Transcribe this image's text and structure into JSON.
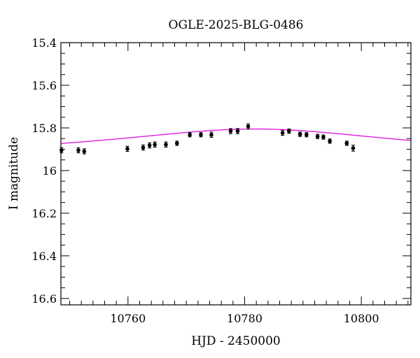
{
  "chart_data": {
    "type": "scatter",
    "title": "OGLE-2025-BLG-0486",
    "xlabel": "HJD - 2450000",
    "ylabel": "I magnitude",
    "xlim": [
      10748.5,
      10808.5
    ],
    "ylim": [
      15.4,
      16.63
    ],
    "y_inverted": true,
    "x_ticks": [
      10760,
      10780,
      10800
    ],
    "x_tick_labels": [
      "10760",
      "10780",
      "10800"
    ],
    "y_ticks": [
      15.4,
      15.6,
      15.8,
      16.0,
      16.2,
      16.4,
      16.6
    ],
    "y_tick_labels": [
      "15.4",
      "15.6",
      "15.8",
      "16",
      "16.2",
      "16.4",
      "16.6"
    ],
    "x_minor_step": 2,
    "y_minor_step": 0.05,
    "grid": false,
    "point_color": "#000000",
    "model_color": "#e020e0",
    "series": [
      {
        "marker": "dot-errorbar",
        "points": [
          {
            "x": 10748.6,
            "y": 15.905,
            "err": 0.012
          },
          {
            "x": 10751.5,
            "y": 15.905,
            "err": 0.012
          },
          {
            "x": 10752.5,
            "y": 15.91,
            "err": 0.012
          },
          {
            "x": 10759.9,
            "y": 15.898,
            "err": 0.012
          },
          {
            "x": 10762.6,
            "y": 15.892,
            "err": 0.012
          },
          {
            "x": 10763.7,
            "y": 15.882,
            "err": 0.012
          },
          {
            "x": 10764.6,
            "y": 15.878,
            "err": 0.012
          },
          {
            "x": 10766.5,
            "y": 15.878,
            "err": 0.012
          },
          {
            "x": 10768.4,
            "y": 15.872,
            "err": 0.01
          },
          {
            "x": 10770.6,
            "y": 15.832,
            "err": 0.01
          },
          {
            "x": 10772.5,
            "y": 15.832,
            "err": 0.01
          },
          {
            "x": 10774.3,
            "y": 15.832,
            "err": 0.012
          },
          {
            "x": 10777.6,
            "y": 15.815,
            "err": 0.012
          },
          {
            "x": 10778.8,
            "y": 15.815,
            "err": 0.012
          },
          {
            "x": 10780.6,
            "y": 15.793,
            "err": 0.012
          },
          {
            "x": 10786.5,
            "y": 15.823,
            "err": 0.012
          },
          {
            "x": 10787.6,
            "y": 15.815,
            "err": 0.01
          },
          {
            "x": 10789.5,
            "y": 15.83,
            "err": 0.01
          },
          {
            "x": 10790.6,
            "y": 15.832,
            "err": 0.01
          },
          {
            "x": 10792.5,
            "y": 15.84,
            "err": 0.01
          },
          {
            "x": 10793.5,
            "y": 15.843,
            "err": 0.01
          },
          {
            "x": 10794.6,
            "y": 15.862,
            "err": 0.01
          },
          {
            "x": 10797.5,
            "y": 15.872,
            "err": 0.01
          },
          {
            "x": 10798.6,
            "y": 15.895,
            "err": 0.014
          }
        ]
      },
      {
        "marker": "line",
        "model": {
          "t0": 10781.8,
          "peak": 15.805,
          "base": 15.975,
          "tau": 25
        }
      }
    ]
  }
}
